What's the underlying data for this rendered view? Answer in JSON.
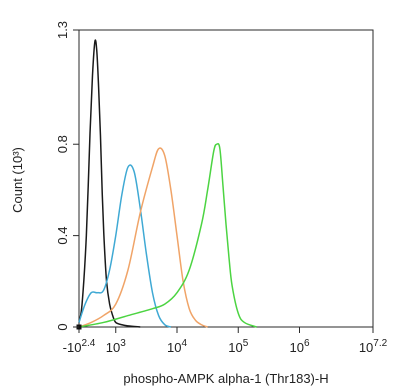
{
  "chart_data": {
    "type": "line",
    "title": "",
    "xlabel": "phospho-AMPK alpha-1 (Thr183)-H",
    "ylabel": "Count (10³)",
    "x_scale": "log",
    "y_scale": "linear",
    "ylim": [
      0,
      1.3
    ],
    "xlim_log10": [
      2.4,
      7.2
    ],
    "y_ticks": [
      {
        "value": 0,
        "label": "0"
      },
      {
        "value": 0.4,
        "label": "0.4"
      },
      {
        "value": 0.8,
        "label": "0.8"
      },
      {
        "value": 1.3,
        "label": "1.3"
      }
    ],
    "x_ticks": [
      {
        "value": 2.4,
        "base": "-10",
        "exp": "2.4"
      },
      {
        "value": 3,
        "base": "10",
        "exp": "3"
      },
      {
        "value": 4,
        "base": "10",
        "exp": "4"
      },
      {
        "value": 5,
        "base": "10",
        "exp": "5"
      },
      {
        "value": 6,
        "base": "10",
        "exp": "6"
      },
      {
        "value": 7.2,
        "base": "10",
        "exp": "7.2"
      }
    ],
    "grid": false,
    "legend": "none",
    "series": [
      {
        "color": "#1a1a1a",
        "x": [
          2.4,
          2.45,
          2.52,
          2.58,
          2.62,
          2.66,
          2.69,
          2.72,
          2.75,
          2.78,
          2.81,
          2.85,
          2.9,
          2.95,
          3.0,
          3.1,
          3.2,
          3.4
        ],
        "y": [
          0.02,
          0.1,
          0.4,
          0.85,
          1.1,
          1.25,
          1.21,
          1.05,
          0.84,
          0.58,
          0.38,
          0.2,
          0.1,
          0.05,
          0.02,
          0.01,
          0.005,
          0.0
        ]
      },
      {
        "color": "#3fa9d4",
        "x": [
          2.4,
          2.5,
          2.6,
          2.7,
          2.8,
          2.9,
          3.0,
          3.1,
          3.2,
          3.3,
          3.4,
          3.5,
          3.6,
          3.7,
          3.8,
          3.9
        ],
        "y": [
          0.02,
          0.1,
          0.15,
          0.15,
          0.16,
          0.25,
          0.4,
          0.58,
          0.7,
          0.68,
          0.52,
          0.32,
          0.15,
          0.05,
          0.01,
          0.0
        ]
      },
      {
        "color": "#f0a468",
        "x": [
          2.4,
          2.6,
          2.8,
          3.0,
          3.2,
          3.4,
          3.6,
          3.7,
          3.8,
          3.9,
          4.0,
          4.1,
          4.2,
          4.3,
          4.4,
          4.5
        ],
        "y": [
          0.0,
          0.02,
          0.05,
          0.1,
          0.25,
          0.5,
          0.7,
          0.78,
          0.75,
          0.6,
          0.4,
          0.2,
          0.08,
          0.03,
          0.01,
          0.0
        ]
      },
      {
        "color": "#4cd442",
        "x": [
          2.4,
          2.8,
          3.2,
          3.6,
          3.8,
          4.0,
          4.2,
          4.4,
          4.5,
          4.6,
          4.65,
          4.7,
          4.75,
          4.8,
          4.85,
          4.9,
          5.0,
          5.1,
          5.3
        ],
        "y": [
          0.0,
          0.02,
          0.05,
          0.08,
          0.1,
          0.15,
          0.25,
          0.45,
          0.6,
          0.77,
          0.8,
          0.78,
          0.62,
          0.45,
          0.3,
          0.18,
          0.06,
          0.02,
          0.0
        ]
      }
    ]
  }
}
